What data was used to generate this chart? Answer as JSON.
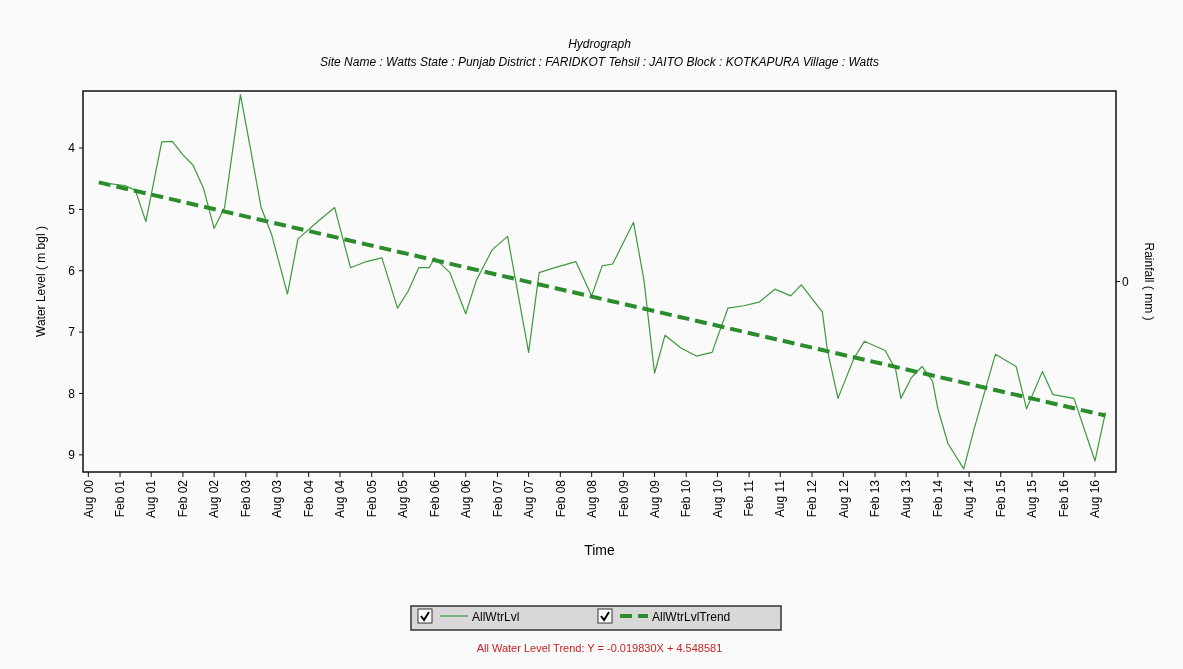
{
  "chart_data": {
    "type": "line",
    "title": "Hydrograph",
    "subtitle": "Site Name : Watts  State : Punjab District : FARIDKOT  Tehsil : JAITO  Block : KOTKAPURA Village : Watts",
    "xlabel": "Time",
    "ylabel": "Water Level ( m bgl )",
    "y2label": "Rainfall ( mm )",
    "annotations": [
      "0",
      "All Water Level Trend: Y = -0.019830X + 4.548581"
    ],
    "xlim": [
      "2000-07",
      "2016-12"
    ],
    "xticks": [
      {
        "value": "2000-08",
        "label": "Aug 00"
      },
      {
        "value": "2001-02",
        "label": "Feb 01"
      },
      {
        "value": "2001-08",
        "label": "Aug 01"
      },
      {
        "value": "2002-02",
        "label": "Feb 02"
      },
      {
        "value": "2002-08",
        "label": "Aug 02"
      },
      {
        "value": "2003-02",
        "label": "Feb 03"
      },
      {
        "value": "2003-08",
        "label": "Aug 03"
      },
      {
        "value": "2004-02",
        "label": "Feb 04"
      },
      {
        "value": "2004-08",
        "label": "Aug 04"
      },
      {
        "value": "2005-02",
        "label": "Feb 05"
      },
      {
        "value": "2005-08",
        "label": "Aug 05"
      },
      {
        "value": "2006-02",
        "label": "Feb 06"
      },
      {
        "value": "2006-08",
        "label": "Aug 06"
      },
      {
        "value": "2007-02",
        "label": "Feb 07"
      },
      {
        "value": "2007-08",
        "label": "Aug 07"
      },
      {
        "value": "2008-02",
        "label": "Feb 08"
      },
      {
        "value": "2008-08",
        "label": "Aug 08"
      },
      {
        "value": "2009-02",
        "label": "Feb 09"
      },
      {
        "value": "2009-08",
        "label": "Aug 09"
      },
      {
        "value": "2010-02",
        "label": "Feb 10"
      },
      {
        "value": "2010-08",
        "label": "Aug 10"
      },
      {
        "value": "2011-02",
        "label": "Feb 11"
      },
      {
        "value": "2011-08",
        "label": "Aug 11"
      },
      {
        "value": "2012-02",
        "label": "Feb 12"
      },
      {
        "value": "2012-08",
        "label": "Aug 12"
      },
      {
        "value": "2013-02",
        "label": "Feb 13"
      },
      {
        "value": "2013-08",
        "label": "Aug 13"
      },
      {
        "value": "2014-02",
        "label": "Feb 14"
      },
      {
        "value": "2014-08",
        "label": "Aug 14"
      },
      {
        "value": "2015-02",
        "label": "Feb 15"
      },
      {
        "value": "2015-08",
        "label": "Aug 15"
      },
      {
        "value": "2016-02",
        "label": "Feb 16"
      },
      {
        "value": "2016-08",
        "label": "Aug 16"
      }
    ],
    "ylim": [
      9.28,
      3.07
    ],
    "yticks": [
      4,
      5,
      6,
      7,
      8,
      9
    ],
    "legend": "bottom",
    "marker": "none",
    "series": [
      {
        "name": "AllWtrLvl",
        "color": "#3c9a3c",
        "line_style": "solid",
        "x": [
          "2000-10",
          "2001-03",
          "2001-05",
          "2001-07",
          "2001-10",
          "2001-12",
          "2002-02",
          "2002-04",
          "2002-06",
          "2002-08",
          "2002-10",
          "2003-01",
          "2003-03",
          "2003-05",
          "2003-07",
          "2003-10",
          "2003-12",
          "2004-04",
          "2004-07",
          "2004-10",
          "2005-01",
          "2005-04",
          "2005-07",
          "2005-09",
          "2005-11",
          "2006-01",
          "2006-02",
          "2006-05",
          "2006-08",
          "2006-10",
          "2007-01",
          "2007-04",
          "2007-08",
          "2007-10",
          "2008-01",
          "2008-05",
          "2008-08",
          "2008-10",
          "2008-12",
          "2009-04",
          "2009-06",
          "2009-08",
          "2009-10",
          "2010-01",
          "2010-04",
          "2010-07",
          "2010-10",
          "2011-01",
          "2011-04",
          "2011-07",
          "2011-10",
          "2011-12",
          "2012-04",
          "2012-05",
          "2012-07",
          "2012-10",
          "2012-12",
          "2013-04",
          "2013-06",
          "2013-07",
          "2013-09",
          "2013-11",
          "2014-01",
          "2014-02",
          "2014-04",
          "2014-07",
          "2014-09",
          "2015-01",
          "2015-05",
          "2015-07",
          "2015-10",
          "2015-12",
          "2016-04",
          "2016-08",
          "2016-10"
        ],
        "values": [
          4.56,
          4.61,
          4.69,
          5.2,
          3.9,
          3.89,
          4.11,
          4.28,
          4.66,
          5.31,
          4.97,
          3.13,
          4.02,
          4.97,
          5.41,
          6.38,
          5.48,
          5.18,
          4.97,
          5.95,
          5.85,
          5.79,
          6.61,
          6.33,
          5.95,
          5.95,
          5.79,
          6.03,
          6.7,
          6.16,
          5.66,
          5.44,
          7.33,
          6.03,
          5.95,
          5.85,
          6.41,
          5.92,
          5.89,
          5.21,
          6.16,
          7.67,
          7.05,
          7.26,
          7.39,
          7.33,
          6.61,
          6.57,
          6.51,
          6.3,
          6.41,
          6.23,
          6.67,
          7.3,
          8.08,
          7.43,
          7.15,
          7.3,
          7.61,
          8.08,
          7.74,
          7.56,
          7.8,
          8.25,
          8.82,
          9.23,
          8.56,
          7.36,
          7.56,
          8.25,
          7.64,
          8.02,
          8.08,
          9.1,
          8.31
        ]
      },
      {
        "name": "AllWtrLvlTrend",
        "color": "#2a8c2a",
        "line_style": "dashed",
        "x": [
          "2000-10",
          "2016-10"
        ],
        "values": [
          4.56,
          8.36
        ]
      }
    ]
  }
}
